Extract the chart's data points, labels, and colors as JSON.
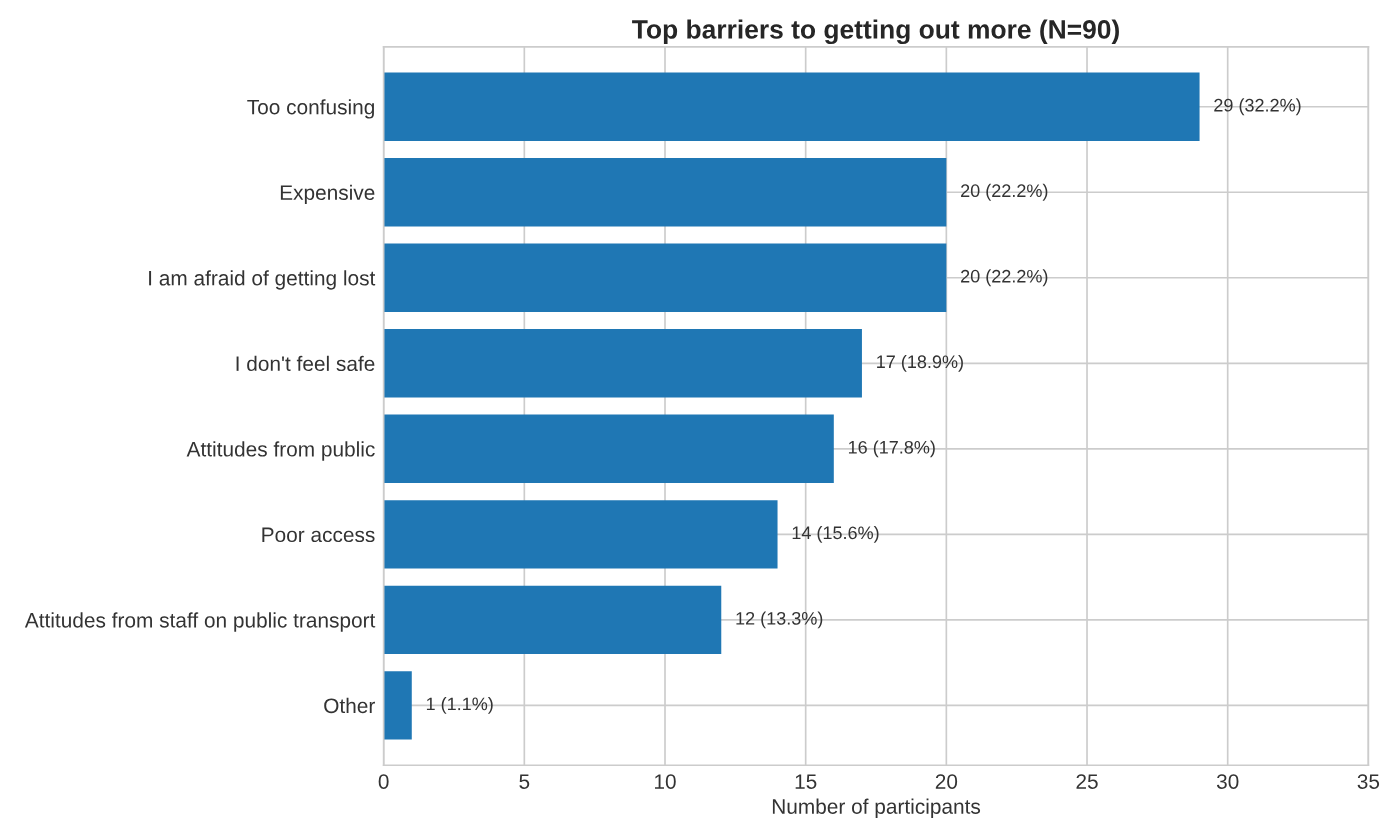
{
  "chart_data": {
    "type": "bar",
    "orientation": "horizontal",
    "title": "Top barriers to getting out more (N=90)",
    "xlabel": "Number of participants",
    "categories": [
      "Too confusing",
      "Expensive",
      "I am afraid of getting lost",
      "I don't feel safe",
      "Attitudes from public",
      "Poor access",
      "Attitudes from staff on public transport",
      "Other"
    ],
    "values": [
      29,
      20,
      20,
      17,
      16,
      14,
      12,
      1
    ],
    "value_labels": [
      "29 (32.2%)",
      "20 (22.2%)",
      "20 (22.2%)",
      "17 (18.9%)",
      "16 (17.8%)",
      "14 (15.6%)",
      "12 (13.3%)",
      "1 (1.1%)"
    ],
    "color": "#1f77b4",
    "xlim": [
      0,
      35
    ],
    "xticks": [
      0,
      5,
      10,
      15,
      20,
      25,
      30,
      35
    ],
    "grid": true,
    "legend": false
  }
}
